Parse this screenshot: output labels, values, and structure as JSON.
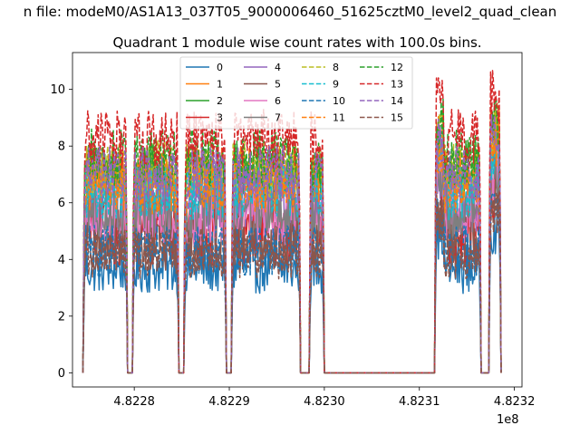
{
  "suptitle": "n file: modeM0/AS1A13_037T05_9000006460_51625cztM0_level2_quad_clean",
  "chart_data": {
    "type": "line",
    "title": "Quadrant 1 module wise count rates with 100.0s bins.",
    "xlabel": "",
    "ylabel": "",
    "x_offset_label": "1e8",
    "xlim": [
      482273500,
      482320800
    ],
    "ylim": [
      -0.5,
      11.3
    ],
    "x_ticks": [
      482280000,
      482290000,
      482300000,
      482310000,
      482320000
    ],
    "x_tick_labels": [
      "4.8228",
      "4.8229",
      "4.8230",
      "4.8231",
      "4.8232"
    ],
    "y_ticks": [
      0,
      2,
      4,
      6,
      8,
      10
    ],
    "y_tick_labels": [
      "0",
      "2",
      "4",
      "6",
      "8",
      "10"
    ],
    "grid": false,
    "legend_location": "upper center",
    "legend_columns": 4,
    "segments": [
      [
        482274600,
        482279300
      ],
      [
        482279800,
        482284700
      ],
      [
        482285200,
        482289700
      ],
      [
        482290200,
        482297500
      ],
      [
        482298400,
        482300000
      ],
      [
        482311600,
        482316500
      ],
      [
        482317300,
        482318600
      ]
    ],
    "gap_value": 0,
    "series": [
      {
        "name": "0",
        "color": "#1f77b4",
        "dashed": false,
        "level": 3.7,
        "spread": 0.9
      },
      {
        "name": "1",
        "color": "#ff7f0e",
        "dashed": false,
        "level": 6.9,
        "spread": 1.1
      },
      {
        "name": "2",
        "color": "#2ca02c",
        "dashed": false,
        "level": 7.0,
        "spread": 1.0
      },
      {
        "name": "3",
        "color": "#d62728",
        "dashed": false,
        "level": 5.0,
        "spread": 1.2
      },
      {
        "name": "4",
        "color": "#9467bd",
        "dashed": false,
        "level": 6.0,
        "spread": 1.1
      },
      {
        "name": "5",
        "color": "#8c564b",
        "dashed": false,
        "level": 4.6,
        "spread": 1.0
      },
      {
        "name": "6",
        "color": "#e377c2",
        "dashed": false,
        "level": 5.6,
        "spread": 1.1
      },
      {
        "name": "7",
        "color": "#7f7f7f",
        "dashed": false,
        "level": 5.8,
        "spread": 1.1
      },
      {
        "name": "8",
        "color": "#bcbd22",
        "dashed": true,
        "level": 7.2,
        "spread": 1.0
      },
      {
        "name": "9",
        "color": "#17becf",
        "dashed": true,
        "level": 6.4,
        "spread": 1.0
      },
      {
        "name": "10",
        "color": "#1f77b4",
        "dashed": true,
        "level": 4.3,
        "spread": 0.9
      },
      {
        "name": "11",
        "color": "#ff7f0e",
        "dashed": true,
        "level": 6.7,
        "spread": 1.1
      },
      {
        "name": "12",
        "color": "#2ca02c",
        "dashed": true,
        "level": 7.6,
        "spread": 1.0
      },
      {
        "name": "13",
        "color": "#d62728",
        "dashed": true,
        "level": 8.2,
        "spread": 1.1
      },
      {
        "name": "14",
        "color": "#9467bd",
        "dashed": true,
        "level": 7.0,
        "spread": 1.0
      },
      {
        "name": "15",
        "color": "#8c564b",
        "dashed": true,
        "level": 4.2,
        "spread": 0.9
      }
    ]
  }
}
